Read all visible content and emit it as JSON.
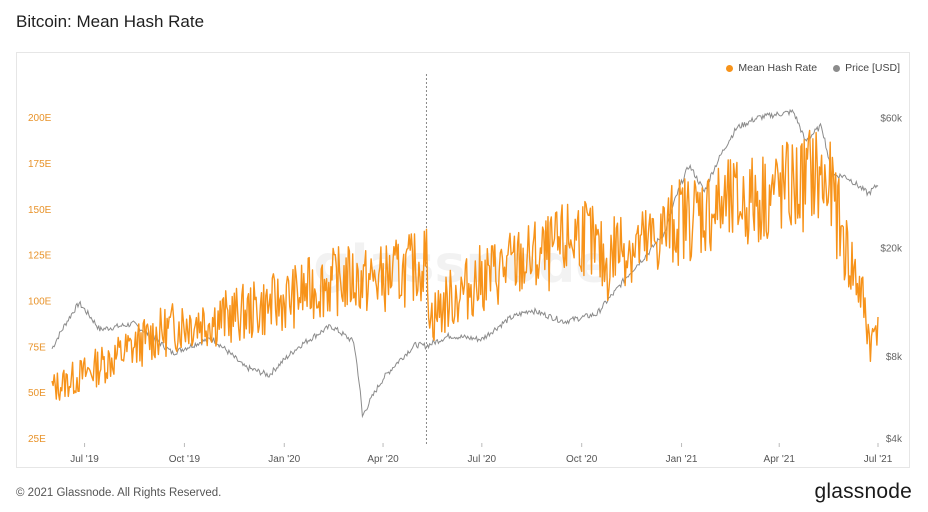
{
  "title": "Bitcoin: Mean Hash Rate",
  "footer": "© 2021 Glassnode. All Rights Reserved.",
  "brand": "glassnode",
  "watermark": "glassnode",
  "colors": {
    "hash": "#f7931a",
    "price": "#8c8c8c",
    "axis_left": "#e8932a",
    "axis_right": "#666666"
  },
  "chart_data": {
    "type": "line",
    "title": "Bitcoin: Mean Hash Rate",
    "legend_position": "top-right",
    "grid": false,
    "x_ticks": [
      "Jul '19",
      "Oct '19",
      "Jan '20",
      "Apr '20",
      "Jul '20",
      "Oct '20",
      "Jan '21",
      "Apr '21",
      "Jul '21"
    ],
    "x_range": [
      "2019-06-01",
      "2021-07-01"
    ],
    "y_left": {
      "label": "",
      "ticks": [
        "25E",
        "50E",
        "75E",
        "100E",
        "125E",
        "150E",
        "175E",
        "200E"
      ],
      "range": [
        25,
        205
      ]
    },
    "y_right": {
      "label": "",
      "scale": "log",
      "ticks": [
        "$4k",
        "$8k",
        "$20k",
        "$60k"
      ],
      "range": [
        4000,
        65000
      ]
    },
    "annotation_date": "2020-05-11",
    "series": [
      {
        "name": "Mean Hash Rate",
        "axis": "left",
        "color": "#f7931a",
        "x": [
          "2019-06-01",
          "2019-07-01",
          "2019-08-01",
          "2019-09-01",
          "2019-10-01",
          "2019-11-01",
          "2019-12-01",
          "2020-01-01",
          "2020-02-01",
          "2020-03-01",
          "2020-03-15",
          "2020-04-01",
          "2020-05-01",
          "2020-05-11",
          "2020-05-15",
          "2020-06-01",
          "2020-07-01",
          "2020-08-01",
          "2020-09-01",
          "2020-10-01",
          "2020-10-25",
          "2020-11-01",
          "2020-12-01",
          "2021-01-01",
          "2021-02-01",
          "2021-03-01",
          "2021-04-01",
          "2021-04-20",
          "2021-05-01",
          "2021-05-20",
          "2021-06-01",
          "2021-06-15",
          "2021-06-25",
          "2021-07-01"
        ],
        "y": [
          52,
          60,
          70,
          80,
          88,
          90,
          94,
          100,
          108,
          112,
          110,
          112,
          118,
          122,
          90,
          100,
          112,
          120,
          125,
          138,
          118,
          130,
          130,
          145,
          150,
          153,
          160,
          162,
          170,
          158,
          128,
          105,
          75,
          93
        ]
      },
      {
        "name": "Price [USD]",
        "axis": "right",
        "color": "#8c8c8c",
        "x": [
          "2019-06-01",
          "2019-06-26",
          "2019-07-15",
          "2019-08-15",
          "2019-09-20",
          "2019-10-26",
          "2019-11-25",
          "2019-12-18",
          "2020-01-15",
          "2020-02-13",
          "2020-03-05",
          "2020-03-13",
          "2020-04-01",
          "2020-05-01",
          "2020-05-11",
          "2020-06-01",
          "2020-07-01",
          "2020-07-27",
          "2020-08-15",
          "2020-09-15",
          "2020-10-15",
          "2020-11-01",
          "2020-12-01",
          "2020-12-17",
          "2021-01-08",
          "2021-01-22",
          "2021-02-21",
          "2021-03-13",
          "2021-04-14",
          "2021-04-25",
          "2021-05-10",
          "2021-05-19",
          "2021-06-01",
          "2021-06-22",
          "2021-07-01"
        ],
        "y": [
          8500,
          12500,
          10000,
          10500,
          8200,
          9300,
          7300,
          6800,
          8700,
          10300,
          9000,
          4800,
          6600,
          8800,
          8700,
          9500,
          9200,
          11000,
          11800,
          10700,
          11400,
          13800,
          19000,
          22800,
          40000,
          32000,
          55000,
          60000,
          63000,
          49000,
          56000,
          37000,
          36500,
          31500,
          34000
        ]
      }
    ]
  }
}
